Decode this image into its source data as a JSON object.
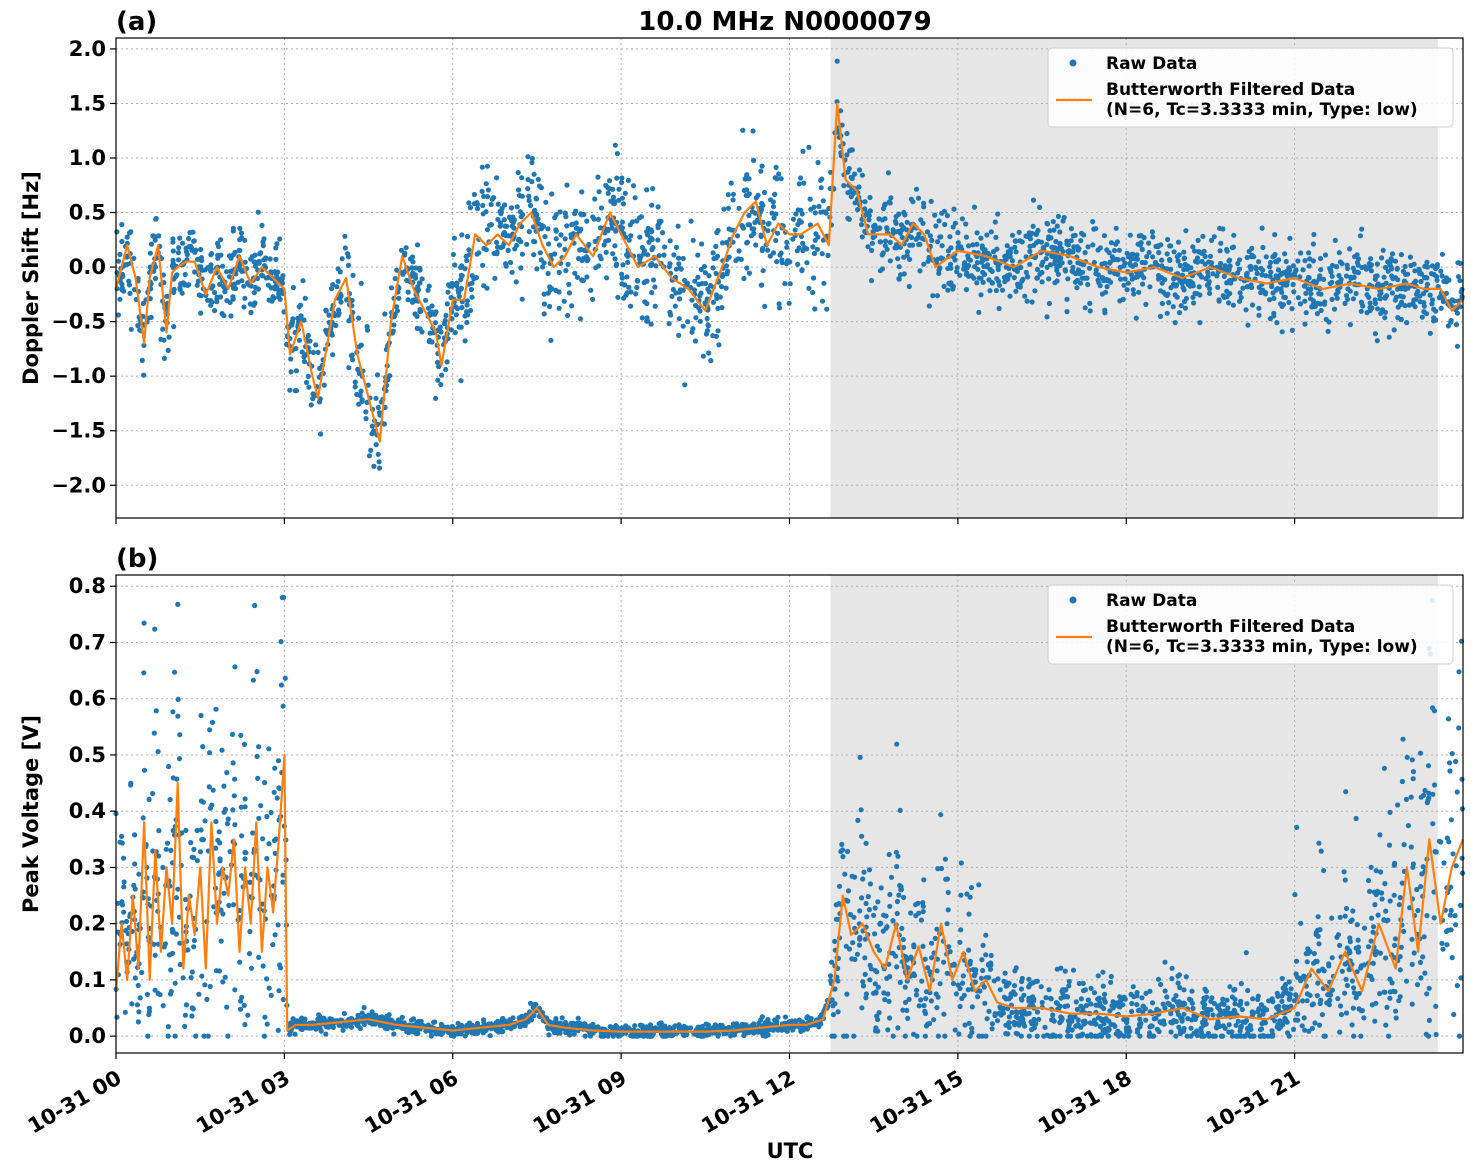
{
  "title": "10.0 MHz N0000079",
  "xlabel": "UTC",
  "colors": {
    "raw": "#1f77b4",
    "filtered": "#ff7f0e",
    "shade": "#e6e6e6",
    "grid": "#b0b0b0"
  },
  "x_ticks": [
    "10-31 00",
    "10-31 03",
    "10-31 06",
    "10-31 09",
    "10-31 12",
    "10-31 15",
    "10-31 18",
    "10-31 21"
  ],
  "chart_data": [
    {
      "type": "scatter",
      "panel_label": "(a)",
      "ylabel": "Doppler Shift [Hz]",
      "xlim": [
        0,
        24
      ],
      "ylim": [
        -2.3,
        2.1
      ],
      "y_ticks": [
        2.0,
        1.5,
        1.0,
        0.5,
        0.0,
        -0.5,
        -1.0,
        -1.5,
        -2.0
      ],
      "y_tick_labels": [
        "2.0",
        "1.5",
        "1.0",
        "0.5",
        "0.0",
        "−0.5",
        "−1.0",
        "−1.5",
        "−2.0"
      ],
      "shaded_region": [
        12.73,
        23.55
      ],
      "grid": true,
      "legend": {
        "position": "top-right",
        "entries": [
          "Raw Data",
          "Butterworth Filtered Data",
          "(N=6, Tc=3.3333 min, Type: low)"
        ]
      },
      "series": [
        {
          "name": "Butterworth Filtered Data",
          "x": [
            0.0,
            0.2,
            0.35,
            0.5,
            0.6,
            0.75,
            0.9,
            1.0,
            1.1,
            1.25,
            1.4,
            1.6,
            1.8,
            2.0,
            2.2,
            2.4,
            2.6,
            2.8,
            3.0,
            3.1,
            3.3,
            3.5,
            3.6,
            3.9,
            4.1,
            4.3,
            4.5,
            4.7,
            4.9,
            5.1,
            5.3,
            5.5,
            5.7,
            5.8,
            6.0,
            6.2,
            6.4,
            6.6,
            6.8,
            7.0,
            7.2,
            7.4,
            7.6,
            7.8,
            8.0,
            8.2,
            8.5,
            8.8,
            9.0,
            9.3,
            9.6,
            9.9,
            10.2,
            10.5,
            10.8,
            11.0,
            11.2,
            11.4,
            11.6,
            11.8,
            12.0,
            12.2,
            12.5,
            12.7,
            12.85,
            13.0,
            13.2,
            13.4,
            13.6,
            13.8,
            14.0,
            14.2,
            14.4,
            14.6,
            15.0,
            15.5,
            16.0,
            16.5,
            17.0,
            17.5,
            18.0,
            18.5,
            19.0,
            19.5,
            20.0,
            20.5,
            21.0,
            21.5,
            22.0,
            22.5,
            23.0,
            23.3,
            23.6,
            23.8,
            24.0
          ],
          "y": [
            -0.2,
            0.2,
            -0.1,
            -0.7,
            -0.1,
            0.2,
            -0.6,
            -0.05,
            0.0,
            0.05,
            0.05,
            -0.25,
            0.0,
            -0.2,
            0.1,
            -0.15,
            0.0,
            -0.1,
            -0.2,
            -0.8,
            -0.5,
            -1.0,
            -1.2,
            -0.3,
            -0.1,
            -0.8,
            -1.2,
            -1.6,
            -0.5,
            0.1,
            -0.2,
            -0.4,
            -0.6,
            -0.9,
            -0.3,
            -0.3,
            0.3,
            0.2,
            0.3,
            0.2,
            0.4,
            0.5,
            0.2,
            0.0,
            0.1,
            0.3,
            0.1,
            0.5,
            0.3,
            0.0,
            0.1,
            -0.1,
            -0.2,
            -0.4,
            0.0,
            0.3,
            0.5,
            0.6,
            0.2,
            0.4,
            0.3,
            0.3,
            0.4,
            0.2,
            1.5,
            0.8,
            0.7,
            0.3,
            0.3,
            0.3,
            0.2,
            0.4,
            0.3,
            0.0,
            0.15,
            0.1,
            0.0,
            0.15,
            0.1,
            0.0,
            -0.05,
            0.0,
            -0.1,
            0.0,
            -0.1,
            -0.15,
            -0.1,
            -0.2,
            -0.15,
            -0.2,
            -0.15,
            -0.2,
            -0.2,
            -0.4,
            -0.3
          ]
        }
      ]
    },
    {
      "type": "scatter",
      "panel_label": "(b)",
      "ylabel": "Peak Voltage [V]",
      "xlim": [
        0,
        24
      ],
      "ylim": [
        -0.03,
        0.82
      ],
      "y_ticks": [
        0.8,
        0.7,
        0.6,
        0.5,
        0.4,
        0.3,
        0.2,
        0.1,
        0.0
      ],
      "y_tick_labels": [
        "0.8",
        "0.7",
        "0.6",
        "0.5",
        "0.4",
        "0.3",
        "0.2",
        "0.1",
        "0.0"
      ],
      "shaded_region": [
        12.73,
        23.55
      ],
      "grid": true,
      "legend": {
        "position": "top-right",
        "entries": [
          "Raw Data",
          "Butterworth Filtered Data",
          "(N=6, Tc=3.3333 min, Type: low)"
        ]
      },
      "series": [
        {
          "name": "Butterworth Filtered Data",
          "x": [
            0.0,
            0.1,
            0.2,
            0.3,
            0.4,
            0.5,
            0.6,
            0.7,
            0.8,
            0.9,
            1.0,
            1.1,
            1.2,
            1.3,
            1.4,
            1.5,
            1.6,
            1.7,
            1.8,
            1.9,
            2.0,
            2.1,
            2.2,
            2.3,
            2.4,
            2.5,
            2.6,
            2.7,
            2.8,
            2.9,
            3.0,
            3.05,
            3.2,
            3.5,
            4.0,
            4.5,
            5.0,
            5.5,
            6.0,
            6.5,
            7.0,
            7.3,
            7.5,
            7.7,
            8.0,
            8.5,
            9.0,
            9.5,
            10.0,
            10.5,
            11.0,
            11.5,
            12.0,
            12.3,
            12.6,
            12.8,
            12.95,
            13.1,
            13.3,
            13.5,
            13.7,
            13.9,
            14.1,
            14.3,
            14.5,
            14.7,
            14.9,
            15.1,
            15.3,
            15.5,
            15.7,
            16.0,
            16.5,
            17.0,
            17.5,
            18.0,
            18.5,
            19.0,
            19.5,
            20.0,
            20.5,
            21.0,
            21.3,
            21.6,
            21.9,
            22.2,
            22.5,
            22.8,
            23.0,
            23.2,
            23.4,
            23.6,
            23.8,
            24.0
          ],
          "y": [
            0.08,
            0.2,
            0.1,
            0.25,
            0.12,
            0.38,
            0.1,
            0.33,
            0.15,
            0.3,
            0.2,
            0.45,
            0.12,
            0.25,
            0.18,
            0.3,
            0.12,
            0.38,
            0.2,
            0.3,
            0.25,
            0.35,
            0.15,
            0.3,
            0.2,
            0.38,
            0.15,
            0.3,
            0.22,
            0.35,
            0.5,
            0.01,
            0.02,
            0.02,
            0.025,
            0.03,
            0.02,
            0.015,
            0.01,
            0.015,
            0.02,
            0.03,
            0.05,
            0.02,
            0.015,
            0.01,
            0.008,
            0.008,
            0.008,
            0.008,
            0.01,
            0.015,
            0.02,
            0.02,
            0.03,
            0.1,
            0.25,
            0.18,
            0.2,
            0.15,
            0.12,
            0.2,
            0.1,
            0.16,
            0.08,
            0.2,
            0.1,
            0.15,
            0.08,
            0.1,
            0.06,
            0.05,
            0.05,
            0.04,
            0.04,
            0.035,
            0.04,
            0.05,
            0.03,
            0.035,
            0.03,
            0.05,
            0.12,
            0.08,
            0.15,
            0.08,
            0.2,
            0.12,
            0.3,
            0.15,
            0.35,
            0.2,
            0.3,
            0.35
          ]
        }
      ]
    }
  ]
}
